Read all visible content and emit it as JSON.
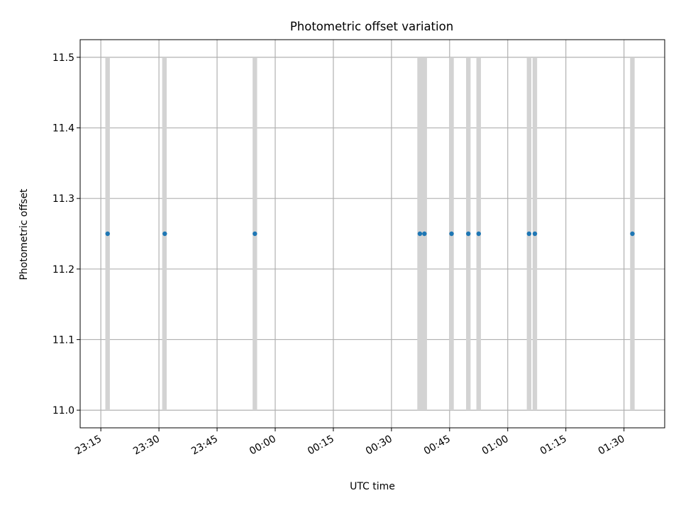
{
  "chart_data": {
    "type": "scatter",
    "title": "Photometric offset variation",
    "xlabel": "UTC time",
    "ylabel": "Photometric offset",
    "grid": true,
    "x_ticks": [
      "23:15",
      "23:30",
      "23:45",
      "00:00",
      "00:15",
      "00:30",
      "00:45",
      "01:00",
      "01:15",
      "01:30"
    ],
    "y_ticks": [
      "11.0",
      "11.1",
      "11.2",
      "11.3",
      "11.4",
      "11.5"
    ],
    "ylim": [
      10.975,
      11.525
    ],
    "xlim": [
      "23:09:40",
      "01:40:30"
    ],
    "series": [
      {
        "color": "#1f77b4",
        "points": [
          {
            "x": "23:16:45",
            "y": 11.25
          },
          {
            "x": "23:31:30",
            "y": 11.25
          },
          {
            "x": "23:54:45",
            "y": 11.25
          },
          {
            "x": "00:37:20",
            "y": 11.25
          },
          {
            "x": "00:38:30",
            "y": 11.25
          },
          {
            "x": "00:45:30",
            "y": 11.25
          },
          {
            "x": "00:49:50",
            "y": 11.25
          },
          {
            "x": "00:52:30",
            "y": 11.25
          },
          {
            "x": "01:05:30",
            "y": 11.25
          },
          {
            "x": "01:07:00",
            "y": 11.25
          },
          {
            "x": "01:32:10",
            "y": 11.25
          }
        ]
      }
    ],
    "bands": {
      "color": "#d3d3d3",
      "y_range": [
        11.0,
        11.5
      ],
      "intervals": [
        [
          "23:16:10",
          "23:17:20"
        ],
        [
          "23:30:50",
          "23:32:00"
        ],
        [
          "23:54:10",
          "23:55:20"
        ],
        [
          "00:36:40",
          "00:39:10"
        ],
        [
          "00:44:55",
          "00:46:05"
        ],
        [
          "00:49:15",
          "00:50:25"
        ],
        [
          "00:51:55",
          "00:53:05"
        ],
        [
          "01:04:55",
          "01:06:05"
        ],
        [
          "01:06:25",
          "01:07:35"
        ],
        [
          "01:31:35",
          "01:32:45"
        ]
      ]
    }
  }
}
